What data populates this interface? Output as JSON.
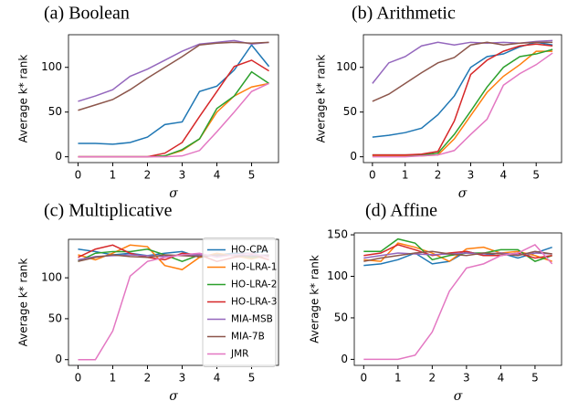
{
  "chart_data": [
    {
      "type": "line",
      "title": "(a) Boolean",
      "xlabel": "σ",
      "ylabel": "Average k* rank",
      "x": [
        0,
        0.5,
        1,
        1.5,
        2,
        2.5,
        3,
        3.5,
        4,
        4.5,
        5,
        5.5
      ],
      "xlim": [
        -0.275,
        5.775
      ],
      "xticks": [
        0,
        1,
        2,
        3,
        4,
        5
      ],
      "ylim": [
        -6.5,
        136.5
      ],
      "yticks": [
        0,
        50,
        100
      ],
      "series": [
        {
          "name": "HO-CPA",
          "color": "#1f77b4",
          "values": [
            15,
            15,
            14,
            16,
            22,
            36,
            39,
            73,
            79,
            97,
            125,
            101
          ]
        },
        {
          "name": "HO-LRA-1",
          "color": "#ff7f0e",
          "values": [
            0,
            0,
            0,
            0,
            0,
            1,
            7,
            20,
            50,
            68,
            78,
            82
          ]
        },
        {
          "name": "HO-LRA-2",
          "color": "#2ca02c",
          "values": [
            0,
            0,
            0,
            0,
            0,
            1,
            8,
            20,
            54,
            68,
            95,
            82
          ]
        },
        {
          "name": "HO-LRA-3",
          "color": "#d62728",
          "values": [
            0,
            0,
            0,
            0,
            0,
            4,
            16,
            45,
            73,
            101,
            108,
            96
          ]
        },
        {
          "name": "MIA-MSB",
          "color": "#9467bd",
          "values": [
            62,
            68,
            75,
            90,
            98,
            108,
            118,
            126,
            128,
            130,
            126,
            128
          ]
        },
        {
          "name": "MIA-7B",
          "color": "#8c564b",
          "values": [
            52,
            58,
            64,
            75,
            88,
            100,
            112,
            125,
            127,
            128,
            127,
            128
          ]
        },
        {
          "name": "JMR",
          "color": "#e377c2",
          "values": [
            0,
            0,
            0,
            0,
            0,
            0,
            1,
            7,
            28,
            50,
            73,
            82
          ]
        }
      ]
    },
    {
      "type": "line",
      "title": "(b) Arithmetic",
      "xlabel": "σ",
      "ylabel": "Average k* rank",
      "x": [
        0,
        0.5,
        1,
        1.5,
        2,
        2.5,
        3,
        3.5,
        4,
        4.5,
        5,
        5.5
      ],
      "xlim": [
        -0.275,
        5.775
      ],
      "xticks": [
        0,
        1,
        2,
        3,
        4,
        5
      ],
      "ylim": [
        -6.5,
        136.5
      ],
      "yticks": [
        0,
        50,
        100
      ],
      "series": [
        {
          "name": "HO-CPA",
          "color": "#1f77b4",
          "values": [
            22,
            24,
            27,
            32,
            47,
            68,
            100,
            112,
            115,
            123,
            128,
            125
          ]
        },
        {
          "name": "HO-LRA-1",
          "color": "#ff7f0e",
          "values": [
            1,
            1,
            1,
            1,
            2,
            20,
            46,
            72,
            90,
            103,
            118,
            118
          ]
        },
        {
          "name": "HO-LRA-2",
          "color": "#2ca02c",
          "values": [
            2,
            2,
            2,
            2,
            4,
            25,
            51,
            78,
            100,
            112,
            115,
            120
          ]
        },
        {
          "name": "HO-LRA-3",
          "color": "#d62728",
          "values": [
            2,
            2,
            2,
            3,
            6,
            40,
            92,
            108,
            118,
            124,
            126,
            124
          ]
        },
        {
          "name": "MIA-MSB",
          "color": "#9467bd",
          "values": [
            82,
            105,
            112,
            124,
            128,
            125,
            128,
            127,
            128,
            127,
            129,
            130
          ]
        },
        {
          "name": "MIA-7B",
          "color": "#8c564b",
          "values": [
            62,
            70,
            82,
            94,
            105,
            111,
            125,
            128,
            125,
            127,
            128,
            128
          ]
        },
        {
          "name": "JMR",
          "color": "#e377c2",
          "values": [
            0,
            0,
            0,
            1,
            2,
            7,
            25,
            42,
            80,
            93,
            103,
            116
          ]
        }
      ]
    },
    {
      "type": "line",
      "title": "(c) Multiplicative",
      "xlabel": "σ",
      "ylabel": "Average k* rank",
      "legend": "right",
      "x": [
        0,
        0.5,
        1,
        1.5,
        2,
        2.5,
        3,
        3.5,
        4,
        4.5,
        5,
        5.5
      ],
      "xlim": [
        -0.275,
        5.775
      ],
      "xticks": [
        0,
        1,
        2,
        3,
        4,
        5
      ],
      "ylim": [
        -7,
        147
      ],
      "yticks": [
        0,
        50,
        100
      ],
      "series": [
        {
          "name": "HO-CPA",
          "color": "#1f77b4",
          "values": [
            135,
            132,
            128,
            130,
            127,
            130,
            132,
            125,
            128,
            130,
            130,
            133
          ]
        },
        {
          "name": "HO-LRA-1",
          "color": "#ff7f0e",
          "values": [
            128,
            122,
            130,
            140,
            138,
            115,
            110,
            125,
            130,
            127,
            123,
            128
          ]
        },
        {
          "name": "HO-LRA-2",
          "color": "#2ca02c",
          "values": [
            120,
            130,
            132,
            132,
            135,
            128,
            120,
            128,
            126,
            128,
            125,
            127
          ]
        },
        {
          "name": "HO-LRA-3",
          "color": "#d62728",
          "values": [
            125,
            135,
            140,
            130,
            125,
            122,
            130,
            128,
            120,
            125,
            128,
            122
          ]
        },
        {
          "name": "MIA-MSB",
          "color": "#9467bd",
          "values": [
            122,
            126,
            127,
            128,
            127,
            126,
            128,
            128,
            127,
            128,
            127,
            128
          ]
        },
        {
          "name": "MIA-7B",
          "color": "#8c564b",
          "values": [
            120,
            125,
            128,
            126,
            125,
            128,
            127,
            126,
            128,
            127,
            126,
            127
          ]
        },
        {
          "name": "JMR",
          "color": "#e377c2",
          "values": [
            0,
            0,
            35,
            102,
            120,
            125,
            128,
            130,
            125,
            128,
            130,
            125
          ]
        }
      ]
    },
    {
      "type": "line",
      "title": "(d) Affine",
      "xlabel": "σ",
      "ylabel": "Average k* rank",
      "x": [
        0,
        0.5,
        1,
        1.5,
        2,
        2.5,
        3,
        3.5,
        4,
        4.5,
        5,
        5.5
      ],
      "xlim": [
        -0.275,
        5.775
      ],
      "xticks": [
        0,
        1,
        2,
        3,
        4,
        5
      ],
      "ylim": [
        -7.25,
        152.25
      ],
      "yticks": [
        0,
        50,
        100,
        150
      ],
      "series": [
        {
          "name": "HO-CPA",
          "color": "#1f77b4",
          "values": [
            113,
            115,
            120,
            128,
            115,
            118,
            130,
            125,
            128,
            122,
            128,
            135
          ]
        },
        {
          "name": "HO-LRA-1",
          "color": "#ff7f0e",
          "values": [
            120,
            118,
            140,
            135,
            128,
            118,
            133,
            135,
            128,
            130,
            125,
            118
          ]
        },
        {
          "name": "HO-LRA-2",
          "color": "#2ca02c",
          "values": [
            130,
            130,
            145,
            140,
            120,
            125,
            128,
            128,
            132,
            132,
            118,
            125
          ]
        },
        {
          "name": "HO-LRA-3",
          "color": "#d62728",
          "values": [
            125,
            128,
            138,
            132,
            125,
            128,
            130,
            125,
            125,
            128,
            122,
            125
          ]
        },
        {
          "name": "MIA-MSB",
          "color": "#9467bd",
          "values": [
            122,
            125,
            128,
            127,
            126,
            127,
            128,
            127,
            128,
            126,
            128,
            127
          ]
        },
        {
          "name": "MIA-7B",
          "color": "#8c564b",
          "values": [
            118,
            122,
            125,
            128,
            130,
            127,
            125,
            128,
            127,
            125,
            130,
            127
          ]
        },
        {
          "name": "JMR",
          "color": "#e377c2",
          "values": [
            0,
            0,
            0,
            5,
            33,
            82,
            110,
            115,
            125,
            128,
            138,
            115
          ]
        }
      ]
    }
  ]
}
